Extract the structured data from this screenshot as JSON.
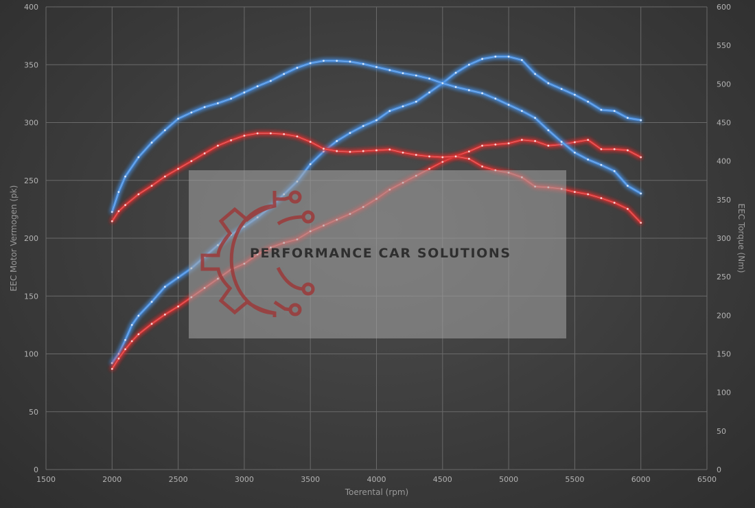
{
  "chart_data": {
    "type": "line",
    "xlabel": "Toerental (rpm)",
    "ylabel_left": "EEC Motor Vermogen (pk)",
    "ylabel_right": "EEC Torque (Nm)",
    "xlim": [
      1500,
      6500
    ],
    "ylim_left": [
      0,
      400
    ],
    "ylim_right": [
      0,
      600
    ],
    "x_ticks": [
      "1500",
      "2000",
      "2500",
      "3000",
      "3500",
      "4000",
      "4500",
      "5000",
      "5500",
      "6000",
      "6500"
    ],
    "y_left_ticks": [
      "0",
      "50",
      "100",
      "150",
      "200",
      "250",
      "300",
      "350",
      "400"
    ],
    "y_right_ticks": [
      "0",
      "50",
      "100",
      "150",
      "200",
      "250",
      "300",
      "350",
      "400",
      "450",
      "500",
      "550",
      "600"
    ],
    "grid": true,
    "series": [
      {
        "color": "#4a90e2",
        "axis": "left",
        "points": [
          [
            2000,
            92
          ],
          [
            2050,
            100
          ],
          [
            2100,
            112
          ],
          [
            2150,
            125
          ],
          [
            2200,
            133
          ],
          [
            2300,
            145
          ],
          [
            2400,
            158
          ],
          [
            2500,
            166
          ],
          [
            2600,
            174
          ],
          [
            2700,
            184
          ],
          [
            2800,
            194
          ],
          [
            2900,
            203
          ],
          [
            3000,
            210
          ],
          [
            3100,
            218
          ],
          [
            3200,
            227
          ],
          [
            3300,
            238
          ],
          [
            3400,
            249
          ],
          [
            3500,
            264
          ],
          [
            3600,
            275
          ],
          [
            3700,
            284
          ],
          [
            3800,
            291
          ],
          [
            3900,
            297
          ],
          [
            4000,
            302
          ],
          [
            4100,
            310
          ],
          [
            4200,
            314
          ],
          [
            4300,
            318
          ],
          [
            4400,
            326
          ],
          [
            4500,
            334
          ],
          [
            4600,
            343
          ],
          [
            4700,
            350
          ],
          [
            4800,
            355
          ],
          [
            4900,
            357
          ],
          [
            5000,
            357
          ],
          [
            5100,
            354
          ],
          [
            5200,
            342
          ],
          [
            5300,
            334
          ],
          [
            5400,
            329
          ],
          [
            5500,
            324
          ],
          [
            5600,
            318
          ],
          [
            5700,
            311
          ],
          [
            5800,
            310
          ],
          [
            5900,
            304
          ],
          [
            6000,
            302
          ]
        ]
      },
      {
        "color": "#d83232",
        "axis": "left",
        "points": [
          [
            2000,
            87
          ],
          [
            2050,
            96
          ],
          [
            2100,
            104
          ],
          [
            2150,
            111
          ],
          [
            2200,
            117
          ],
          [
            2300,
            126
          ],
          [
            2400,
            134
          ],
          [
            2500,
            141
          ],
          [
            2600,
            149
          ],
          [
            2700,
            157
          ],
          [
            2800,
            165
          ],
          [
            2900,
            173
          ],
          [
            3000,
            178
          ],
          [
            3100,
            186
          ],
          [
            3200,
            192
          ],
          [
            3300,
            196
          ],
          [
            3400,
            199
          ],
          [
            3500,
            206
          ],
          [
            3600,
            211
          ],
          [
            3700,
            216
          ],
          [
            3800,
            221
          ],
          [
            3900,
            227
          ],
          [
            4000,
            234
          ],
          [
            4100,
            242
          ],
          [
            4200,
            248
          ],
          [
            4300,
            254
          ],
          [
            4400,
            260
          ],
          [
            4500,
            266
          ],
          [
            4600,
            271
          ],
          [
            4700,
            275
          ],
          [
            4800,
            280
          ],
          [
            4900,
            281
          ],
          [
            5000,
            282
          ],
          [
            5100,
            285
          ],
          [
            5200,
            284
          ],
          [
            5300,
            280
          ],
          [
            5400,
            281
          ],
          [
            5500,
            283
          ],
          [
            5600,
            285
          ],
          [
            5700,
            277
          ],
          [
            5800,
            277
          ],
          [
            5900,
            276
          ],
          [
            6000,
            270
          ]
        ]
      },
      {
        "color": "#4a90e2",
        "axis": "right",
        "points": [
          [
            2000,
            334
          ],
          [
            2050,
            360
          ],
          [
            2100,
            380
          ],
          [
            2200,
            405
          ],
          [
            2300,
            424
          ],
          [
            2400,
            440
          ],
          [
            2500,
            455
          ],
          [
            2600,
            463
          ],
          [
            2700,
            470
          ],
          [
            2800,
            475
          ],
          [
            2900,
            481
          ],
          [
            3000,
            489
          ],
          [
            3100,
            497
          ],
          [
            3200,
            504
          ],
          [
            3300,
            513
          ],
          [
            3400,
            521
          ],
          [
            3500,
            527
          ],
          [
            3600,
            530
          ],
          [
            3700,
            530
          ],
          [
            3800,
            529
          ],
          [
            3900,
            526
          ],
          [
            4000,
            522
          ],
          [
            4100,
            518
          ],
          [
            4200,
            514
          ],
          [
            4300,
            511
          ],
          [
            4400,
            507
          ],
          [
            4500,
            501
          ],
          [
            4600,
            496
          ],
          [
            4700,
            492
          ],
          [
            4800,
            488
          ],
          [
            4900,
            481
          ],
          [
            5000,
            473
          ],
          [
            5100,
            465
          ],
          [
            5200,
            456
          ],
          [
            5300,
            440
          ],
          [
            5400,
            425
          ],
          [
            5500,
            411
          ],
          [
            5600,
            402
          ],
          [
            5700,
            395
          ],
          [
            5800,
            387
          ],
          [
            5900,
            368
          ],
          [
            6000,
            358
          ]
        ]
      },
      {
        "color": "#d83232",
        "axis": "right",
        "points": [
          [
            2000,
            322
          ],
          [
            2050,
            335
          ],
          [
            2100,
            343
          ],
          [
            2200,
            357
          ],
          [
            2300,
            368
          ],
          [
            2400,
            380
          ],
          [
            2500,
            390
          ],
          [
            2600,
            400
          ],
          [
            2700,
            410
          ],
          [
            2800,
            420
          ],
          [
            2900,
            427
          ],
          [
            3000,
            433
          ],
          [
            3100,
            436
          ],
          [
            3200,
            436
          ],
          [
            3300,
            435
          ],
          [
            3400,
            432
          ],
          [
            3500,
            425
          ],
          [
            3600,
            416
          ],
          [
            3700,
            413
          ],
          [
            3800,
            412
          ],
          [
            3900,
            413
          ],
          [
            4000,
            414
          ],
          [
            4100,
            415
          ],
          [
            4200,
            411
          ],
          [
            4300,
            408
          ],
          [
            4400,
            406
          ],
          [
            4500,
            405
          ],
          [
            4600,
            406
          ],
          [
            4700,
            403
          ],
          [
            4800,
            393
          ],
          [
            4900,
            388
          ],
          [
            5000,
            385
          ],
          [
            5100,
            379
          ],
          [
            5200,
            367
          ],
          [
            5300,
            366
          ],
          [
            5400,
            364
          ],
          [
            5500,
            360
          ],
          [
            5600,
            357
          ],
          [
            5700,
            352
          ],
          [
            5800,
            346
          ],
          [
            5900,
            338
          ],
          [
            6000,
            320
          ]
        ]
      }
    ]
  },
  "watermark": {
    "text": "PERFORMANCE CAR SOLUTIONS",
    "logo_icon": "gear-circuit-icon",
    "panel_color": "#a6a6a6",
    "logo_color": "#9c3a3a"
  }
}
